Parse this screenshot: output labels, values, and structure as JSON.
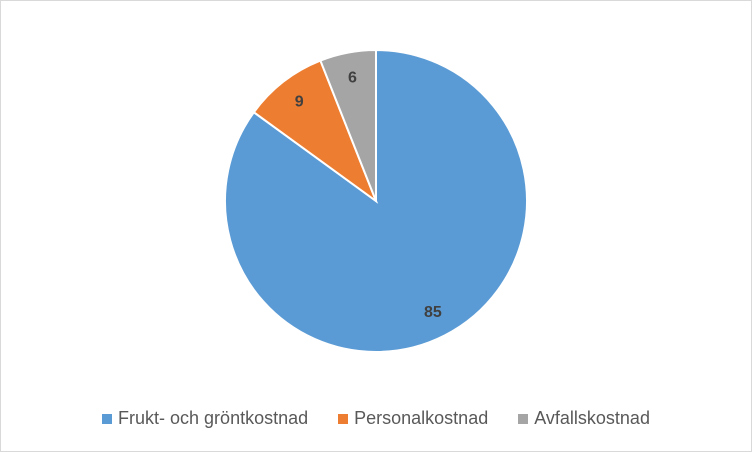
{
  "chart_data": {
    "type": "pie",
    "categories": [
      "Frukt- och gröntkostnad",
      "Personalkostnad",
      "Avfallskostnad"
    ],
    "values": [
      85,
      9,
      6
    ],
    "colors": [
      "#5b9bd5",
      "#ed7d31",
      "#a5a5a5"
    ],
    "data_labels": [
      "85",
      "9",
      "6"
    ],
    "title": "",
    "legend_position": "bottom"
  }
}
